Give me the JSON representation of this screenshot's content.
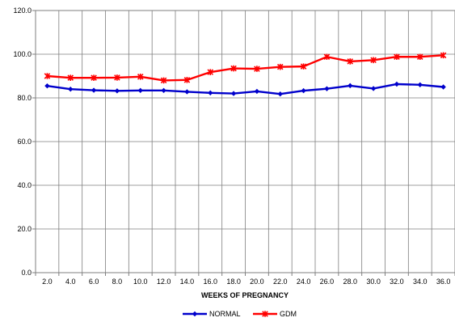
{
  "chart_data": {
    "type": "line",
    "title": "",
    "xlabel": "WEEKS OF PREGNANCY",
    "ylabel": "",
    "categories": [
      "2.0",
      "4.0",
      "6.0",
      "8.0",
      "10.0",
      "12.0",
      "14.0",
      "16.0",
      "18.0",
      "20.0",
      "22.0",
      "24.0",
      "26.0",
      "28.0",
      "30.0",
      "32.0",
      "34.0",
      "36.0"
    ],
    "y_ticks": [
      "0.0",
      "20.0",
      "40.0",
      "60.0",
      "80.0",
      "100.0",
      "120.0"
    ],
    "ylim": [
      0,
      120
    ],
    "grid": true,
    "legend_position": "bottom",
    "series": [
      {
        "name": "NORMAL",
        "color": "#0000cc",
        "marker": "diamond",
        "values": [
          85.5,
          84.0,
          83.5,
          83.2,
          83.4,
          83.4,
          82.8,
          82.3,
          82.0,
          83.0,
          81.8,
          83.3,
          84.2,
          85.6,
          84.3,
          86.3,
          86.0,
          85.0
        ]
      },
      {
        "name": "GDM",
        "color": "#ff0000",
        "marker": "star",
        "values": [
          90.0,
          89.2,
          89.2,
          89.3,
          89.7,
          88.0,
          88.2,
          91.8,
          93.5,
          93.3,
          94.2,
          94.4,
          98.8,
          96.7,
          97.3,
          98.8,
          98.8,
          99.5
        ]
      }
    ]
  }
}
